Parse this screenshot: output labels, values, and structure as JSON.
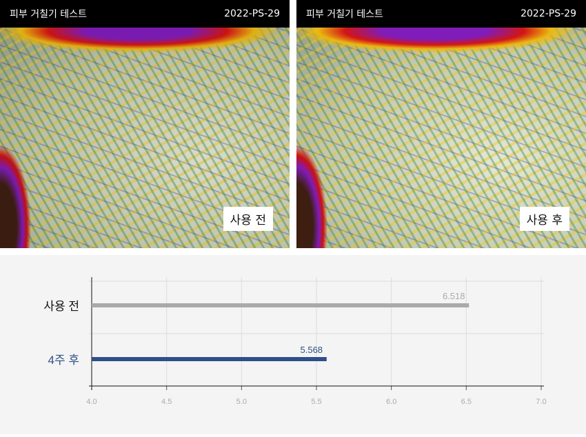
{
  "panels": [
    {
      "title": "피부 거칠기 테스트",
      "code": "2022-PS-29",
      "label": "사용 전"
    },
    {
      "title": "피부 거칠기 테스트",
      "code": "2022-PS-29",
      "label": "사용 후"
    }
  ],
  "chart_data": {
    "type": "bar",
    "orientation": "horizontal",
    "categories": [
      "사용 전",
      "4주 후"
    ],
    "values": [
      6.518,
      5.568
    ],
    "data_labels": [
      "6.518",
      "5.568"
    ],
    "colors": [
      "#aaaaaa",
      "#2e4f87"
    ],
    "category_label_colors": [
      "#111111",
      "#2e4f87"
    ],
    "xlim": [
      4.0,
      7.0
    ],
    "xticks": [
      "4.0",
      "4.5",
      "5.0",
      "5.5",
      "6.0",
      "6.5",
      "7.0"
    ],
    "grid": true
  }
}
